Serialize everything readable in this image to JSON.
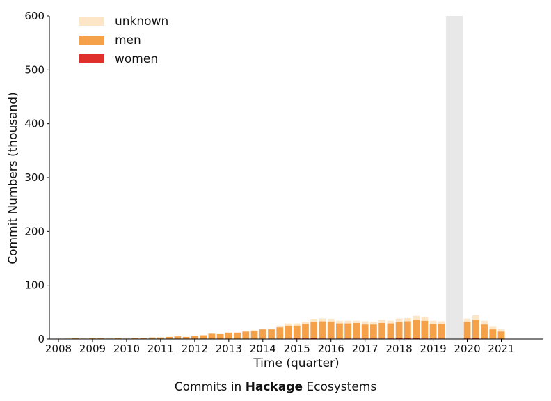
{
  "caption": {
    "prefix": "Commits in ",
    "bold": "Hackage",
    "suffix": " Ecosystems"
  },
  "chart_data": {
    "type": "bar",
    "stacked": true,
    "xlabel": "Time (quarter)",
    "ylabel": "Commit Numbers (thousand)",
    "ylim": [
      0,
      600
    ],
    "yticks": [
      0,
      100,
      200,
      300,
      400,
      500,
      600
    ],
    "xtick_labels": [
      "2008",
      "2009",
      "2010",
      "2011",
      "2012",
      "2013",
      "2014",
      "2015",
      "2016",
      "2017",
      "2018",
      "2019",
      "2020",
      "2021"
    ],
    "legend_position": "top-left",
    "grid": false,
    "shaded_period": [
      "2019Q3",
      "2019Q4"
    ],
    "categories": [
      "2008Q1",
      "2008Q2",
      "2008Q3",
      "2008Q4",
      "2009Q1",
      "2009Q2",
      "2009Q3",
      "2009Q4",
      "2010Q1",
      "2010Q2",
      "2010Q3",
      "2010Q4",
      "2011Q1",
      "2011Q2",
      "2011Q3",
      "2011Q4",
      "2012Q1",
      "2012Q2",
      "2012Q3",
      "2012Q4",
      "2013Q1",
      "2013Q2",
      "2013Q3",
      "2013Q4",
      "2014Q1",
      "2014Q2",
      "2014Q3",
      "2014Q4",
      "2015Q1",
      "2015Q2",
      "2015Q3",
      "2015Q4",
      "2016Q1",
      "2016Q2",
      "2016Q3",
      "2016Q4",
      "2017Q1",
      "2017Q2",
      "2017Q3",
      "2017Q4",
      "2018Q1",
      "2018Q2",
      "2018Q3",
      "2018Q4",
      "2019Q1",
      "2019Q2",
      "2019Q3",
      "2019Q4",
      "2020Q1",
      "2020Q2",
      "2020Q3",
      "2020Q4",
      "2021Q1"
    ],
    "series": [
      {
        "name": "women",
        "color": "#e0302c",
        "values": [
          0.1,
          0.1,
          0.1,
          0.2,
          0.1,
          0.1,
          0.1,
          0.1,
          0.1,
          0.1,
          0.1,
          0.1,
          0.1,
          0.2,
          0.2,
          0.2,
          0.3,
          0.3,
          0.4,
          0.5,
          0.5,
          0.5,
          0.6,
          0.6,
          0.8,
          0.8,
          0.8,
          0.9,
          1.2,
          1.2,
          1.3,
          1.1,
          1.0,
          1.0,
          1.1,
          1.0,
          1.0,
          1.1,
          1.0,
          1.1,
          1.3,
          1.5,
          1.3,
          1.1,
          1.0,
          1.0,
          null,
          null,
          1.2,
          1.3,
          1.0,
          0.8,
          0.6
        ]
      },
      {
        "name": "men",
        "color": "#f4a14a",
        "values": [
          0.5,
          0.8,
          1.5,
          0.8,
          1.5,
          1.5,
          0.9,
          1.5,
          0.9,
          1.9,
          1.9,
          2.9,
          2.9,
          3.8,
          4.8,
          3.8,
          5.7,
          6.7,
          9.5,
          8.6,
          11.4,
          11.4,
          13.3,
          14.3,
          17.2,
          17.2,
          21.0,
          24.0,
          23.8,
          26.8,
          31.2,
          31.8,
          31.7,
          28.0,
          27.9,
          28.9,
          26.0,
          25.9,
          29.0,
          27.9,
          30.7,
          31.5,
          34.7,
          32.9,
          27.0,
          27.0,
          null,
          null,
          30.8,
          34.7,
          26.0,
          17.2,
          13.4
        ]
      },
      {
        "name": "unknown",
        "color": "#fde6c8",
        "values": [
          0.4,
          0.1,
          0.4,
          0.5,
          0.4,
          0.4,
          0.5,
          0.4,
          0.5,
          0.5,
          0.5,
          0.5,
          0.5,
          0.5,
          0.5,
          0.5,
          0.5,
          0.5,
          0.6,
          0.4,
          0.6,
          0.6,
          1.6,
          1.6,
          1.5,
          1.5,
          3.0,
          4.0,
          4.0,
          4.0,
          5.0,
          5.5,
          5.0,
          5.0,
          5.0,
          4.0,
          6.0,
          5.0,
          6.0,
          5.0,
          6.0,
          6.0,
          7.0,
          7.0,
          6.0,
          5.0,
          null,
          null,
          6.0,
          8.0,
          7.0,
          6.0,
          4.0
        ]
      }
    ]
  }
}
